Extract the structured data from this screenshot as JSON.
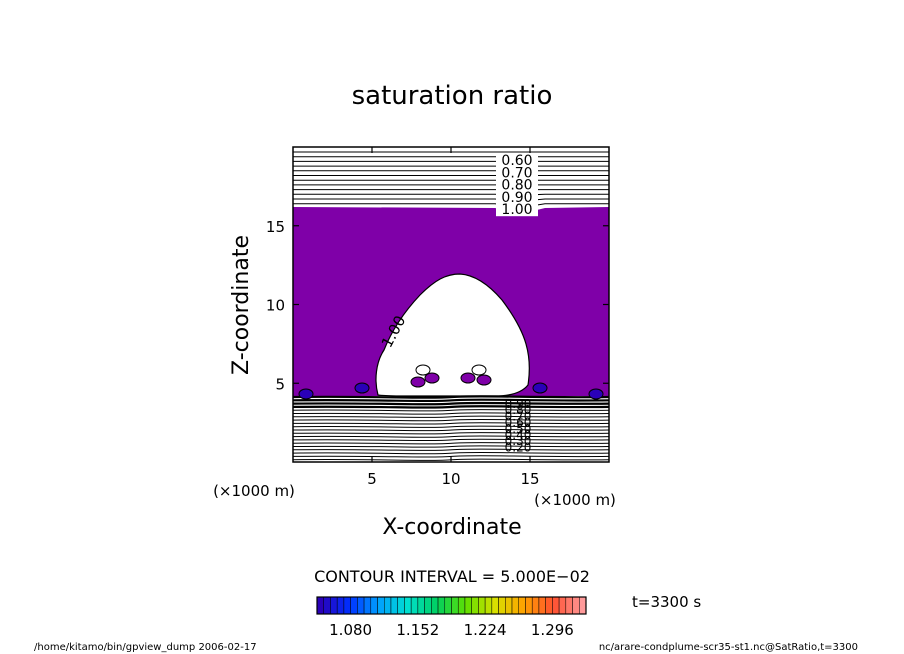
{
  "chart_data": {
    "type": "contour",
    "title": "saturation ratio",
    "xlabel": "X-coordinate",
    "ylabel": "Z-coordinate",
    "x_unit": "(×1000 m)",
    "z_unit": "(×1000 m)",
    "xlim": [
      0,
      20
    ],
    "ylim": [
      0,
      20
    ],
    "x_ticks": [
      "5",
      "10",
      "15"
    ],
    "z_ticks": [
      "5",
      "10",
      "15"
    ],
    "contour_interval_text": "CONTOUR INTERVAL = 5.000E−02",
    "time_label": "t=3300 s",
    "upper_contour_levels": [
      "0.60",
      "0.70",
      "0.80",
      "0.90",
      "1.00"
    ],
    "lower_contour_levels": [
      "0.90",
      "0.80",
      "0.70",
      "0.60",
      "0.50",
      "0.40",
      "0.30",
      "0.20"
    ],
    "cloud_edge_label": "1.00",
    "supersaturated_fill_color": "#7f00a8",
    "colorbar": {
      "tick_labels": [
        "1.080",
        "1.152",
        "1.224",
        "1.296"
      ],
      "range": [
        1.044,
        1.332
      ],
      "colors": [
        "#2a00b8",
        "#0030ff",
        "#00a0ff",
        "#00e0d0",
        "#00d060",
        "#60e000",
        "#d8e000",
        "#ffa000",
        "#ff5030",
        "#ff9a9a"
      ]
    }
  },
  "footer": {
    "left": "/home/kitamo/bin/gpview_dump  2006-02-17",
    "right": "nc/arare-condplume-scr35-st1.nc@SatRatio,t=3300"
  }
}
